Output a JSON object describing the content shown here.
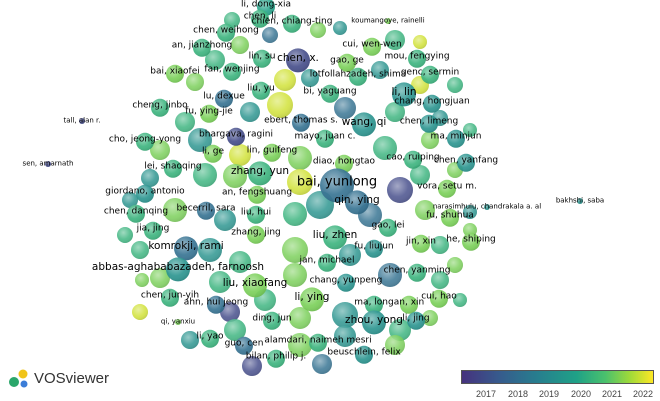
{
  "app": {
    "name": "VOSviewer"
  },
  "legend": {
    "years": [
      "2017",
      "2018",
      "2019",
      "2020",
      "2021",
      "2022"
    ],
    "colors": [
      "#46327e",
      "#365c8d",
      "#277f8e",
      "#1fa187",
      "#4ac16d",
      "#a0da39",
      "#fde725"
    ]
  },
  "nodes": [
    {
      "name": "li, dong-xia",
      "year": 2019.5,
      "w": 1
    },
    {
      "name": "chen, li",
      "year": 2020,
      "w": 1
    },
    {
      "name": "chien, chiang-ting",
      "year": 2020,
      "w": 1
    },
    {
      "name": "koumangoye, rainelli",
      "year": 2021,
      "w": 0
    },
    {
      "name": "chen, weihong",
      "year": 2020,
      "w": 1
    },
    {
      "name": "cui, wen-wen",
      "year": 2021,
      "w": 1
    },
    {
      "name": "an, jianzhong",
      "year": 2020,
      "w": 1
    },
    {
      "name": "chen, x.",
      "year": 2017,
      "w": 2
    },
    {
      "name": "mou, fengying",
      "year": 2020,
      "w": 1
    },
    {
      "name": "lin, su",
      "year": 2020,
      "w": 1
    },
    {
      "name": "gao, ge",
      "year": 2021,
      "w": 1
    },
    {
      "name": "genc, sermin",
      "year": 2020,
      "w": 1
    },
    {
      "name": "bai, xiaofei",
      "year": 2021,
      "w": 1
    },
    {
      "name": "fan, wenjing",
      "year": 2020,
      "w": 1
    },
    {
      "name": "lotfollahzadeh, shima",
      "year": 2020,
      "w": 1
    },
    {
      "name": "li, lin",
      "year": 2019,
      "w": 2
    },
    {
      "name": "liu, yu",
      "year": 2020,
      "w": 1
    },
    {
      "name": "bi, yaguang",
      "year": 2020,
      "w": 1
    },
    {
      "name": "lu, dexue",
      "year": 2018,
      "w": 1
    },
    {
      "name": "cheng, jinbo",
      "year": 2020,
      "w": 1
    },
    {
      "name": "chang, hongjuan",
      "year": 2019,
      "w": 1
    },
    {
      "name": "fu, ying-jie",
      "year": 2021,
      "w": 1
    },
    {
      "name": "tall, alan r.",
      "year": 2017,
      "w": 0
    },
    {
      "name": "ebert, thomas s.",
      "year": 2018,
      "w": 1
    },
    {
      "name": "wang, qi",
      "year": 2019,
      "w": 2
    },
    {
      "name": "chen, limeng",
      "year": 2019,
      "w": 1
    },
    {
      "name": "ma, minjun",
      "year": 2019,
      "w": 1
    },
    {
      "name": "cho, jeong-yong",
      "year": 2020,
      "w": 1
    },
    {
      "name": "bhargava, ragini",
      "year": 2017,
      "w": 1
    },
    {
      "name": "mayo, juan c.",
      "year": 2020,
      "w": 1
    },
    {
      "name": "li, ge",
      "year": 2021,
      "w": 1
    },
    {
      "name": "lin, guifeng",
      "year": 2021,
      "w": 1
    },
    {
      "name": "cao, ruiping",
      "year": 2020,
      "w": 1
    },
    {
      "name": "chen, yanfang",
      "year": 2019,
      "w": 1
    },
    {
      "name": "sen, amarnath",
      "year": 2017,
      "w": 0
    },
    {
      "name": "lei, shaoqing",
      "year": 2020,
      "w": 1
    },
    {
      "name": "diao, hongtao",
      "year": 2021,
      "w": 1
    },
    {
      "name": "zhang, yun",
      "year": 2020,
      "w": 2
    },
    {
      "name": "bai, yunlong",
      "year": 2018,
      "w": 3
    },
    {
      "name": "vora, setu m.",
      "year": 2021,
      "w": 1
    },
    {
      "name": "bakhshi, saba",
      "year": 2019,
      "w": 0
    },
    {
      "name": "giordano, antonio",
      "year": 2019,
      "w": 1
    },
    {
      "name": "an, fengshuang",
      "year": 2021,
      "w": 1
    },
    {
      "name": "qin, ying",
      "year": 2018,
      "w": 2
    },
    {
      "name": "narasimhulu, chandrakala a. al",
      "year": 2019,
      "w": 0
    },
    {
      "name": "chen, danqing",
      "year": 2020,
      "w": 1
    },
    {
      "name": "becerril, sara",
      "year": 2018,
      "w": 1
    },
    {
      "name": "liu, hui",
      "year": 2020,
      "w": 1
    },
    {
      "name": "fu, shuhua",
      "year": 2021,
      "w": 1
    },
    {
      "name": "gao, lei",
      "year": 2020,
      "w": 1
    },
    {
      "name": "jia, jing",
      "year": 2020,
      "w": 1
    },
    {
      "name": "zhang, jing",
      "year": 2021,
      "w": 1
    },
    {
      "name": "liu, zhen",
      "year": 2020,
      "w": 2
    },
    {
      "name": "jin, xin",
      "year": 2021,
      "w": 1
    },
    {
      "name": "he, shiping",
      "year": 2021,
      "w": 1
    },
    {
      "name": "komrokji, rami",
      "year": 2018,
      "w": 2
    },
    {
      "name": "fu, liujun",
      "year": 2019,
      "w": 1
    },
    {
      "name": "abbas-aghababazadeh, farnoosh",
      "year": 2019,
      "w": 2
    },
    {
      "name": "jan, michael",
      "year": 2020,
      "w": 1
    },
    {
      "name": "chen, yanming",
      "year": 2020,
      "w": 1
    },
    {
      "name": "liu, xiaofang",
      "year": 2021,
      "w": 2
    },
    {
      "name": "chang, yunpeng",
      "year": 2019,
      "w": 1
    },
    {
      "name": "chen, jun-yih",
      "year": 2020,
      "w": 1
    },
    {
      "name": "li, ying",
      "year": 2021,
      "w": 2
    },
    {
      "name": "cui, hao",
      "year": 2021,
      "w": 1
    },
    {
      "name": "ahn, hui jeong",
      "year": 2018,
      "w": 1
    },
    {
      "name": "ma, long",
      "year": 2020,
      "w": 1
    },
    {
      "name": "an, xin",
      "year": 2021,
      "w": 1
    },
    {
      "name": "li, jing",
      "year": 2019,
      "w": 1
    },
    {
      "name": "qi, yanxiu",
      "year": 2021,
      "w": 0
    },
    {
      "name": "ding, jun",
      "year": 2020,
      "w": 1
    },
    {
      "name": "zhou, yong",
      "year": 2019,
      "w": 2
    },
    {
      "name": "alamdari, naimeh mesri",
      "year": 2020,
      "w": 1
    },
    {
      "name": "li, yao",
      "year": 2020,
      "w": 1
    },
    {
      "name": "guo, cen",
      "year": 2018,
      "w": 1
    },
    {
      "name": "bilan, philip j.",
      "year": 2020,
      "w": 1
    },
    {
      "name": "beuschlein, felix",
      "year": 2019,
      "w": 1
    }
  ]
}
